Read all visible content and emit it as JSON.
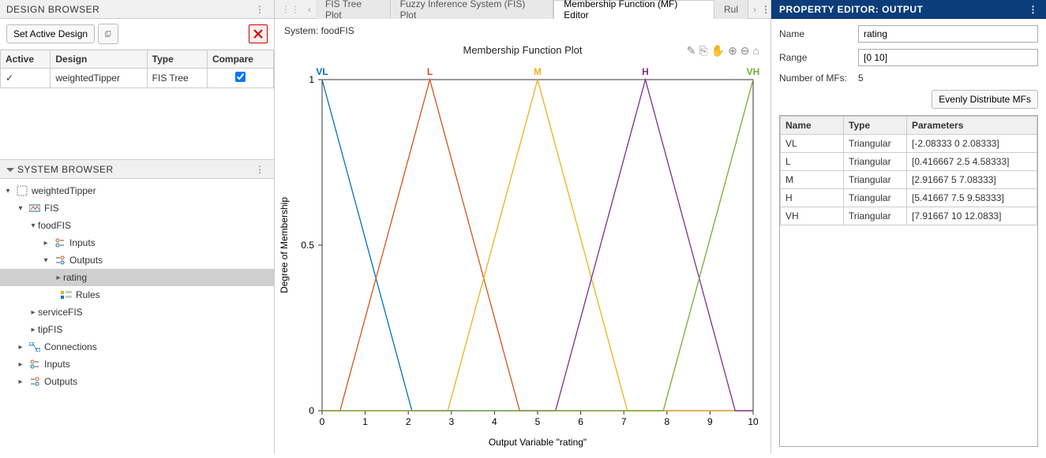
{
  "design_browser": {
    "title": "DESIGN BROWSER",
    "set_active_label": "Set Active Design",
    "columns": [
      "Active",
      "Design",
      "Type",
      "Compare"
    ],
    "rows": [
      {
        "active": "✓",
        "design": "weightedTipper",
        "type": "FIS Tree",
        "compare": true
      }
    ]
  },
  "system_browser": {
    "title": "SYSTEM BROWSER",
    "tree": {
      "root": "weightedTipper",
      "fis_group": "FIS",
      "foodFIS": "foodFIS",
      "inputs": "Inputs",
      "outputs": "Outputs",
      "rating": "rating",
      "rules": "Rules",
      "serviceFIS": "serviceFIS",
      "tipFIS": "tipFIS",
      "connections": "Connections",
      "top_inputs": "Inputs",
      "top_outputs": "Outputs"
    }
  },
  "tabs": {
    "items": [
      {
        "label": "FIS Tree Plot",
        "active": false
      },
      {
        "label": "Fuzzy Inference System (FIS) Plot",
        "active": false
      },
      {
        "label": "Membership Function (MF) Editor",
        "active": true
      },
      {
        "label": "Rul",
        "active": false
      }
    ]
  },
  "editor": {
    "system_label": "System: foodFIS",
    "chart": {
      "title": "Membership Function Plot",
      "xlabel": "Output Variable \"rating\"",
      "ylabel": "Degree of Membership",
      "xlim": [
        0,
        10
      ],
      "ylim": [
        0,
        1
      ],
      "xticks": [
        0,
        1,
        2,
        3,
        4,
        5,
        6,
        7,
        8,
        9,
        10
      ],
      "yticks": [
        0,
        0.5,
        1
      ],
      "mfs": [
        {
          "name": "VL",
          "color": "#0072bd",
          "params": [
            -2.08333,
            0,
            2.08333
          ]
        },
        {
          "name": "L",
          "color": "#d95319",
          "params": [
            0.416667,
            2.5,
            4.58333
          ]
        },
        {
          "name": "M",
          "color": "#edb120",
          "params": [
            2.91667,
            5,
            7.08333
          ]
        },
        {
          "name": "H",
          "color": "#7e2f8e",
          "params": [
            5.41667,
            7.5,
            9.58333
          ]
        },
        {
          "name": "VH",
          "color": "#77ac30",
          "params": [
            7.91667,
            10,
            12.0833
          ]
        }
      ]
    }
  },
  "property_editor": {
    "title": "PROPERTY EDITOR: OUTPUT",
    "name_label": "Name",
    "name_value": "rating",
    "range_label": "Range",
    "range_value": "[0 10]",
    "num_mfs_label": "Number of MFs:",
    "num_mfs_value": "5",
    "distribute_btn": "Evenly Distribute MFs",
    "columns": [
      "Name",
      "Type",
      "Parameters"
    ],
    "rows": [
      {
        "name": "VL",
        "type": "Triangular",
        "params": "[-2.08333 0 2.08333]"
      },
      {
        "name": "L",
        "type": "Triangular",
        "params": "[0.416667 2.5 4.58333]"
      },
      {
        "name": "M",
        "type": "Triangular",
        "params": "[2.91667 5 7.08333]"
      },
      {
        "name": "H",
        "type": "Triangular",
        "params": "[5.41667 7.5 9.58333]"
      },
      {
        "name": "VH",
        "type": "Triangular",
        "params": "[7.91667 10 12.0833]"
      }
    ]
  }
}
